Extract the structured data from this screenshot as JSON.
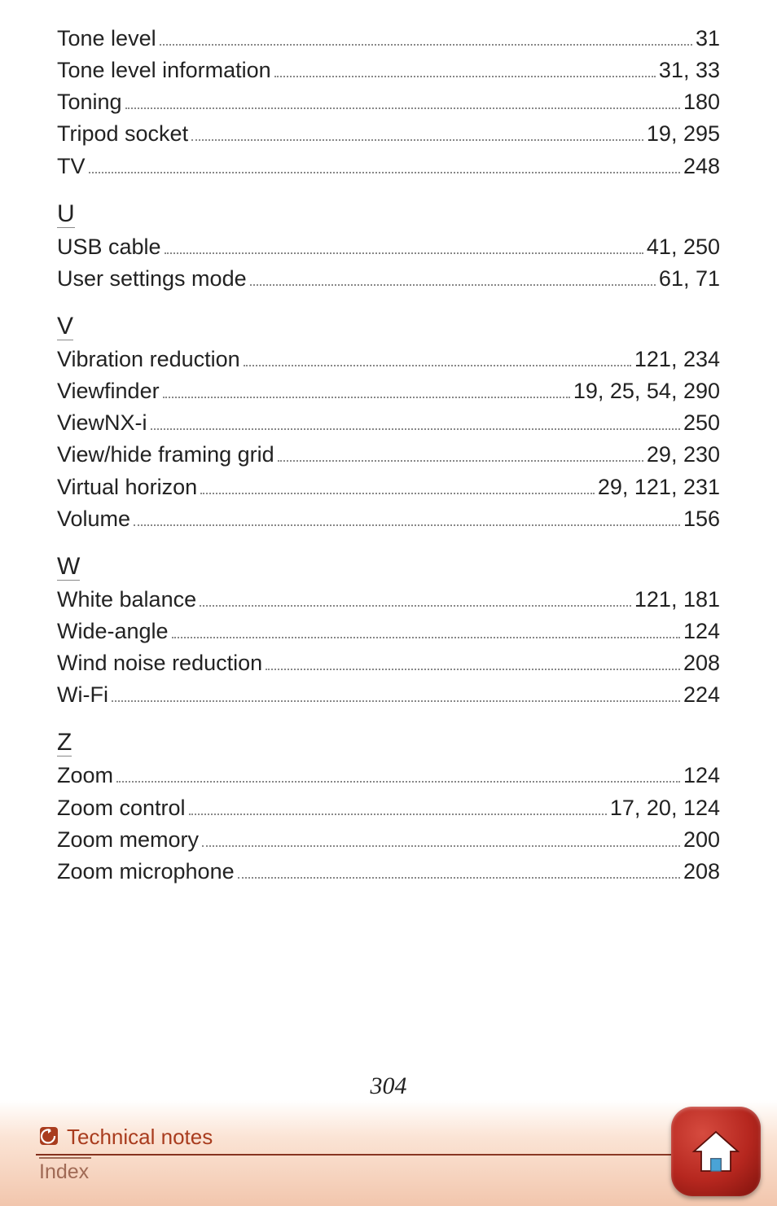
{
  "page_number": "304",
  "footer": {
    "section_title": "Technical notes",
    "sub": "Index"
  },
  "sections": [
    {
      "letter": "",
      "entries": [
        {
          "term": "Tone level",
          "pages": "31"
        },
        {
          "term": "Tone level information",
          "pages": "31, 33"
        },
        {
          "term": "Toning",
          "pages": "180"
        },
        {
          "term": "Tripod socket",
          "pages": "19, 295"
        },
        {
          "term": "TV",
          "pages": "248"
        }
      ]
    },
    {
      "letter": "U",
      "entries": [
        {
          "term": "USB cable",
          "pages": "41, 250"
        },
        {
          "term": "User settings mode",
          "pages": "61, 71"
        }
      ]
    },
    {
      "letter": "V",
      "entries": [
        {
          "term": "Vibration reduction",
          "pages": " 121, 234"
        },
        {
          "term": "Viewfinder",
          "pages": "19, 25, 54, 290"
        },
        {
          "term": "ViewNX-i",
          "pages": "250"
        },
        {
          "term": "View/hide framing grid",
          "pages": "29, 230"
        },
        {
          "term": "Virtual horizon",
          "pages": " 29, 121, 231"
        },
        {
          "term": "Volume",
          "pages": "156"
        }
      ]
    },
    {
      "letter": "W",
      "entries": [
        {
          "term": "White balance",
          "pages": "121, 181"
        },
        {
          "term": "Wide-angle",
          "pages": "124"
        },
        {
          "term": "Wind noise reduction",
          "pages": "208"
        },
        {
          "term": "Wi-Fi",
          "pages": " 224"
        }
      ]
    },
    {
      "letter": "Z",
      "entries": [
        {
          "term": "Zoom",
          "pages": "124"
        },
        {
          "term": "Zoom control",
          "pages": "17, 20, 124"
        },
        {
          "term": "Zoom memory",
          "pages": "200"
        },
        {
          "term": "Zoom microphone",
          "pages": "208"
        }
      ]
    }
  ]
}
